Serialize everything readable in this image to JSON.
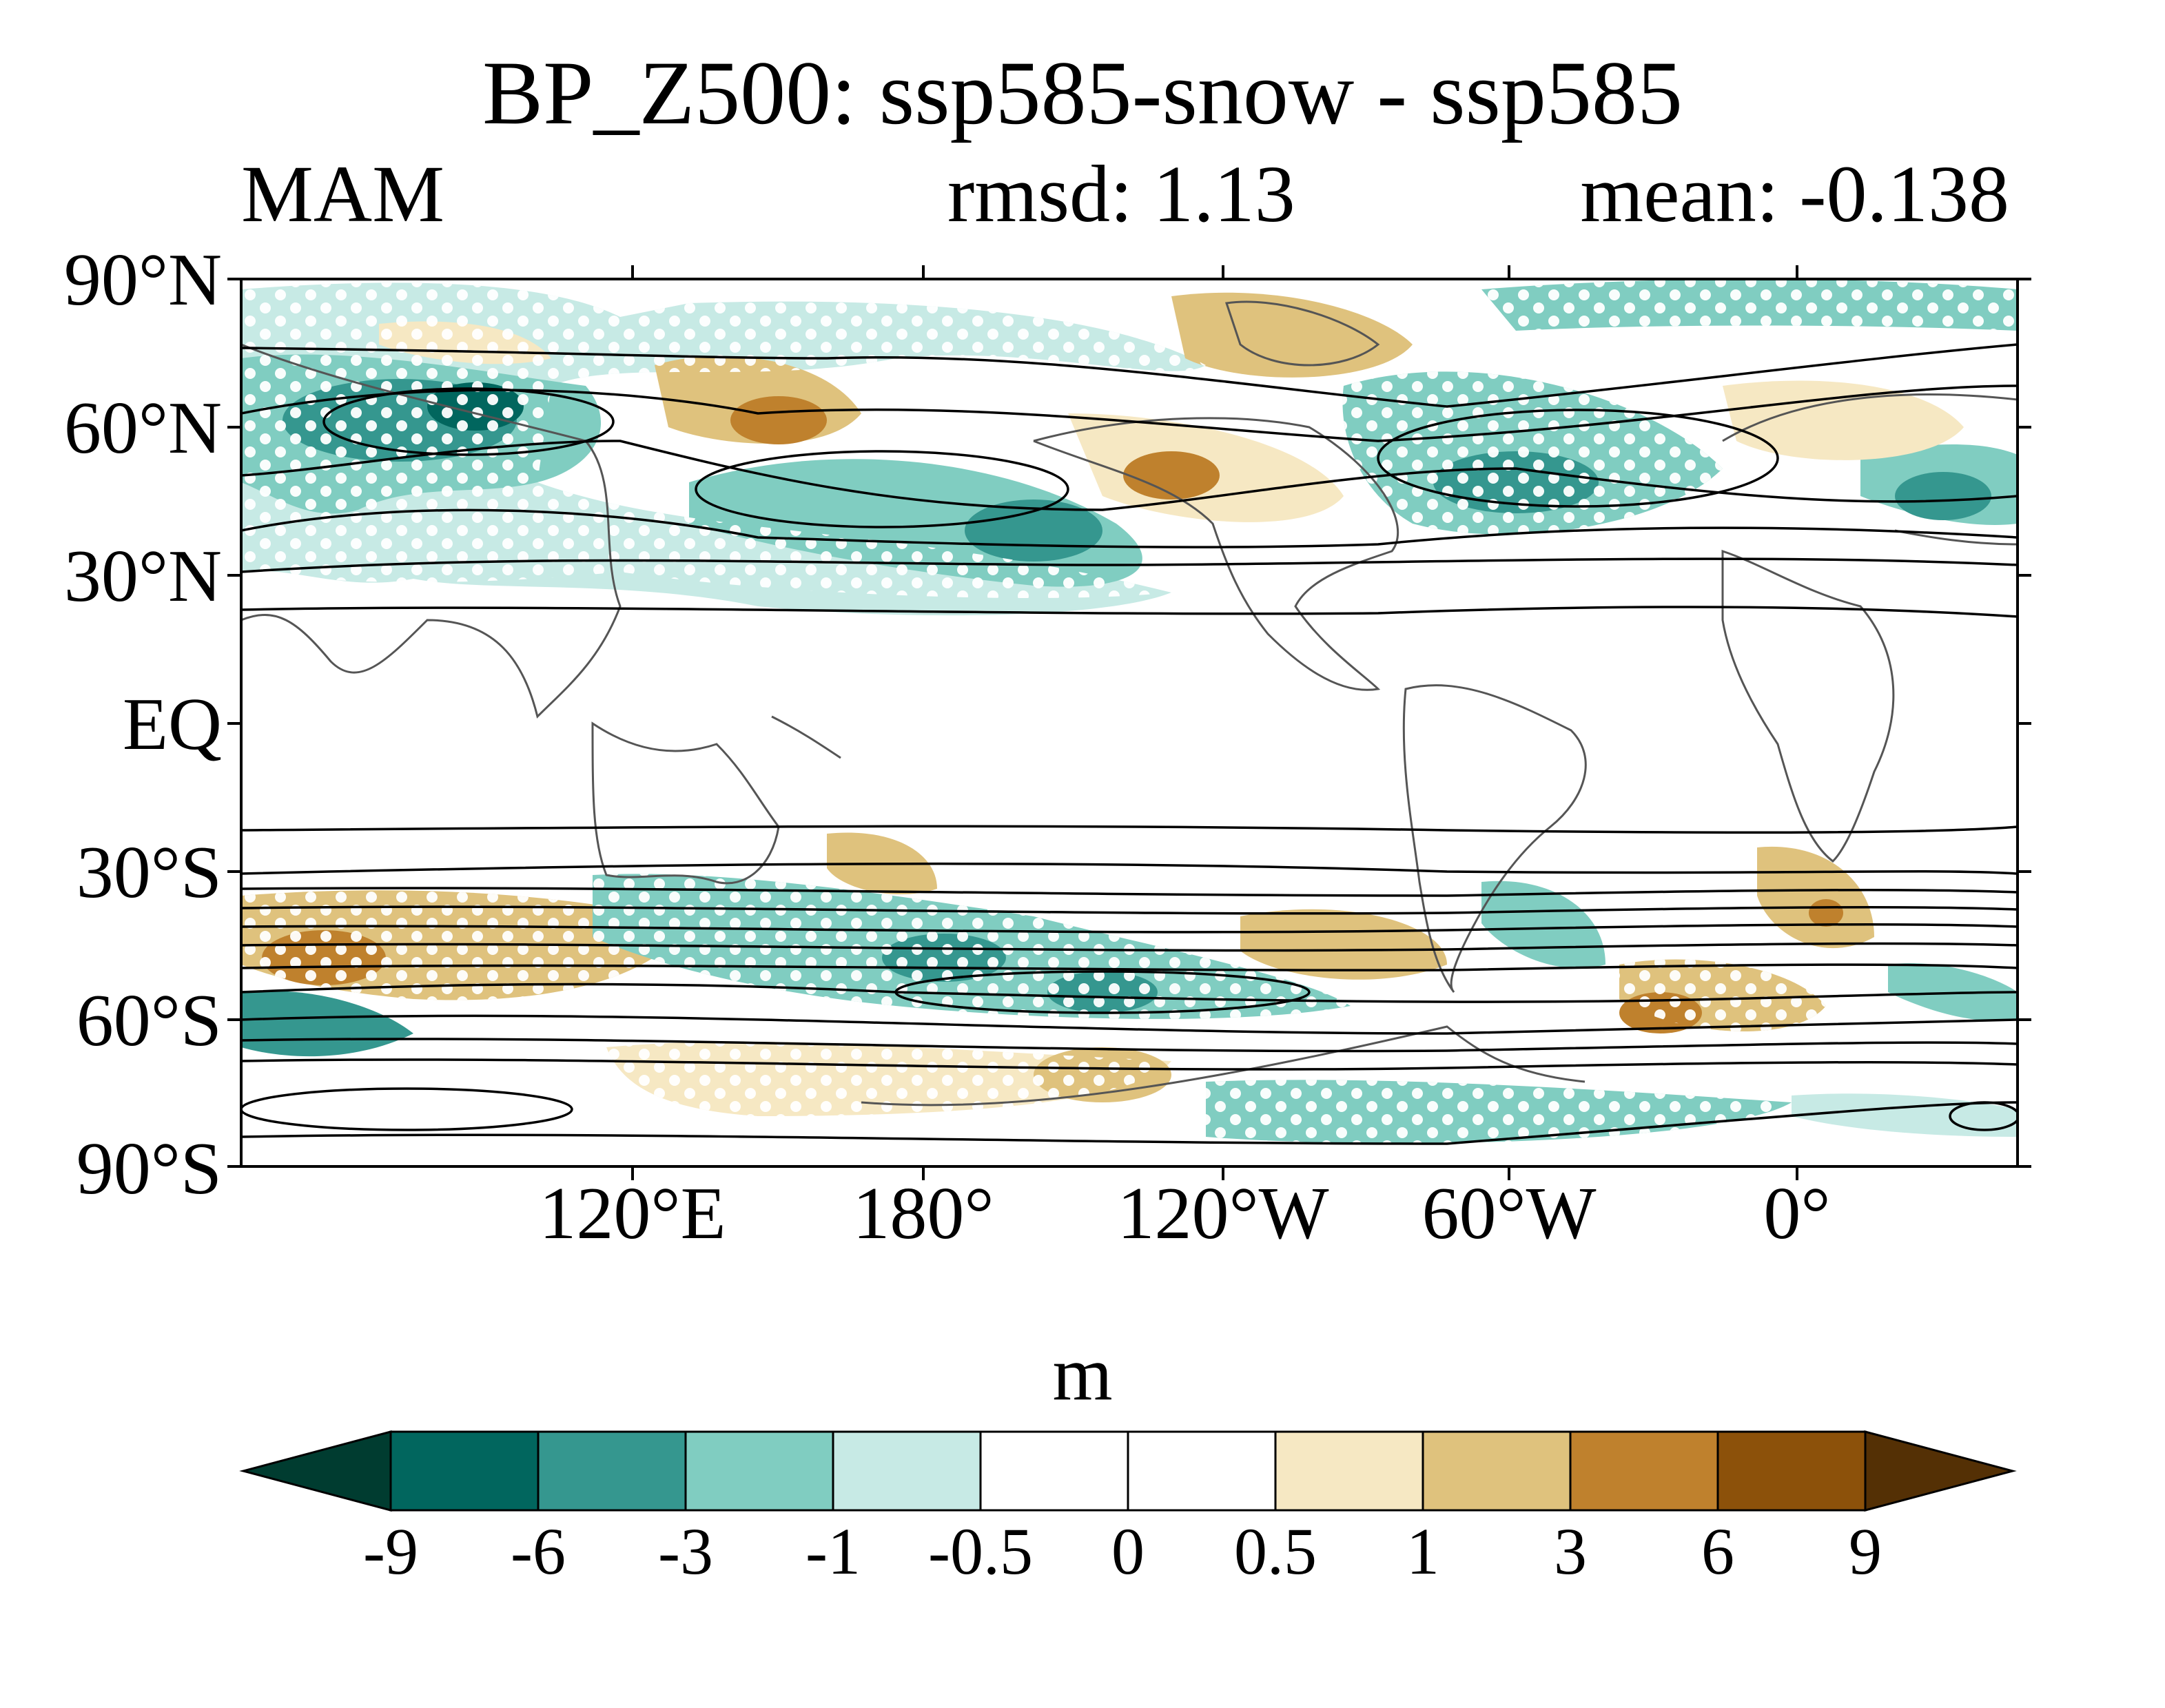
{
  "title": "BP_Z500: ssp585-snow - ssp585",
  "subtitle_left": "MAM",
  "subtitle_center": "rmsd: 1.13",
  "subtitle_right": "mean: -0.138",
  "units": "m",
  "lat_labels": [
    "90°N",
    "60°N",
    "30°N",
    "EQ",
    "30°S",
    "60°S",
    "90°S"
  ],
  "lon_labels": [
    "120°E",
    "180°",
    "120°W",
    "60°W",
    "0°"
  ],
  "colorbar": {
    "levels": [
      "-9",
      "-6",
      "-3",
      "-1",
      "-0.5",
      "0",
      "0.5",
      "1",
      "3",
      "6",
      "9"
    ],
    "colors": [
      "#003c30",
      "#01665e",
      "#35978f",
      "#80cdc1",
      "#c7eae5",
      "#ffffff",
      "#ffffff",
      "#f6e8c3",
      "#dfc27d",
      "#bf812d",
      "#8c510a",
      "#543005"
    ]
  },
  "map": {
    "projection": "cylindrical equidistant",
    "central_longitude": "~40°W",
    "stippling": "white dots mark significant differences",
    "contours": "black lines show climatological Z500"
  }
}
